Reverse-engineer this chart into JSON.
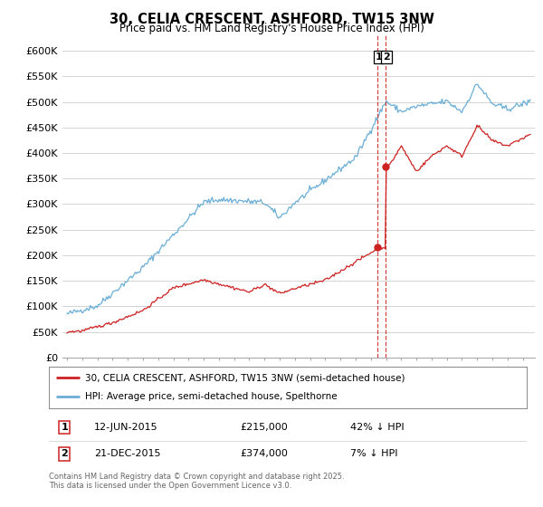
{
  "title": "30, CELIA CRESCENT, ASHFORD, TW15 3NW",
  "subtitle": "Price paid vs. HM Land Registry's House Price Index (HPI)",
  "ylim": [
    0,
    630000
  ],
  "yticks": [
    0,
    50000,
    100000,
    150000,
    200000,
    250000,
    300000,
    350000,
    400000,
    450000,
    500000,
    550000,
    600000
  ],
  "ytick_labels": [
    "£0",
    "£50K",
    "£100K",
    "£150K",
    "£200K",
    "£250K",
    "£300K",
    "£350K",
    "£400K",
    "£450K",
    "£500K",
    "£550K",
    "£600K"
  ],
  "xlim_start": 1994.7,
  "xlim_end": 2025.8,
  "hpi_color": "#6baed6",
  "price_color": "#cc2222",
  "vline_color": "#cc2222",
  "transactions": [
    {
      "x": 2015.44,
      "price": 215000,
      "label": "1",
      "date": "12-JUN-2015",
      "price_str": "£215,000",
      "pct": "42% ↓ HPI"
    },
    {
      "x": 2015.97,
      "price": 374000,
      "label": "2",
      "date": "21-DEC-2015",
      "price_str": "£374,000",
      "pct": "7% ↓ HPI"
    }
  ],
  "legend_entry1": "30, CELIA CRESCENT, ASHFORD, TW15 3NW (semi-detached house)",
  "legend_entry2": "HPI: Average price, semi-detached house, Spelthorne",
  "footer": "Contains HM Land Registry data © Crown copyright and database right 2025.\nThis data is licensed under the Open Government Licence v3.0.",
  "background_color": "#ffffff",
  "grid_color": "#cccccc"
}
